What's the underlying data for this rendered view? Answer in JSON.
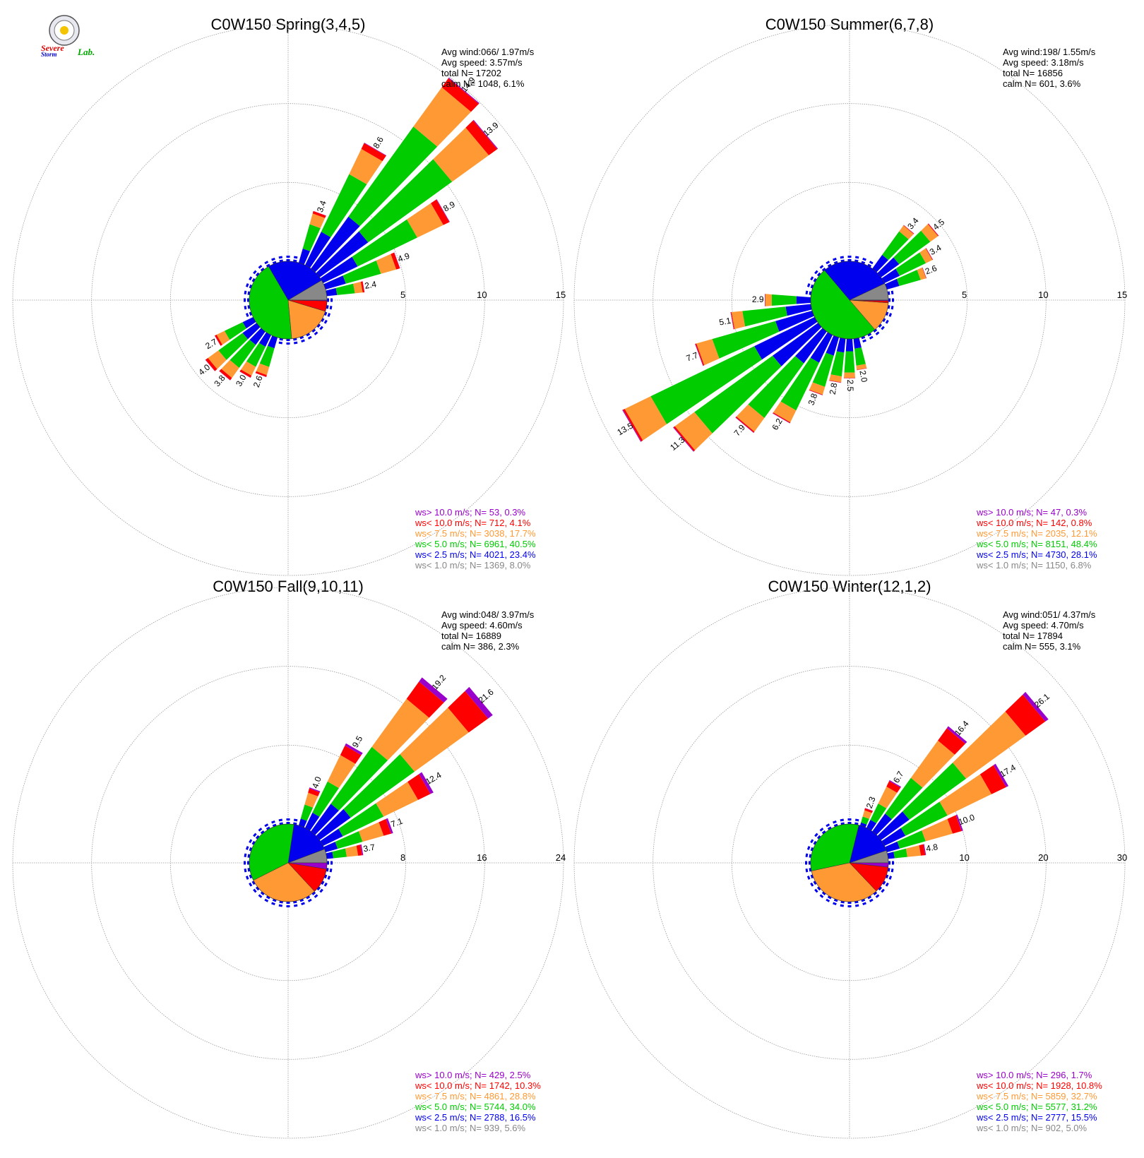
{
  "colors": {
    "calm": "#888888",
    "lt2_5": "#0000ee",
    "lt5": "#00cc00",
    "lt7_5": "#ff9933",
    "lt10": "#ff0000",
    "gt10": "#9900cc"
  },
  "logo": {
    "line1": "Severe",
    "line2": "Storm",
    "line3": "Lab."
  },
  "chart_data": [
    {
      "type": "windrose",
      "title": "C0W150 Spring(3,4,5)",
      "ring_max": 15,
      "ring_ticks": [
        "5",
        "10",
        "15"
      ],
      "stats": [
        "Avg wind:066/ 1.97m/s",
        "Avg speed: 3.57m/s",
        "total N=      17202",
        "calm N=   1048,   6.1%"
      ],
      "legend": [
        {
          "text": "ws> 10.0 m/s; N=    53,  0.3%",
          "color": "#9900cc"
        },
        {
          "text": "ws< 10.0 m/s; N=   712,  4.1%",
          "color": "#ff0000"
        },
        {
          "text": "ws<  7.5 m/s; N=  3038, 17.7%",
          "color": "#ff9933"
        },
        {
          "text": "ws<  5.0 m/s; N=  6961, 40.5%",
          "color": "#00cc00"
        },
        {
          "text": "ws<  2.5 m/s; N=  4021, 23.4%",
          "color": "#0000ee"
        },
        {
          "text": "ws<  1.0 m/s; N=  1369,  8.0%",
          "color": "#888888"
        }
      ],
      "pie": [
        8.0,
        23.4,
        40.5,
        17.7,
        4.1,
        0.3
      ],
      "bars": [
        {
          "dir": 30,
          "total": 8.6,
          "label": "8.6"
        },
        {
          "dir": 40,
          "total": 14.9,
          "label": "14.9"
        },
        {
          "dir": 50,
          "total": 13.9,
          "label": "13.9"
        },
        {
          "dir": 60,
          "total": 8.9,
          "label": "8.9"
        },
        {
          "dir": 70,
          "total": 4.9,
          "label": "4.9"
        },
        {
          "dir": 80,
          "total": 2.4,
          "label": "2.4"
        },
        {
          "dir": 20,
          "total": 3.4,
          "label": "3.4"
        },
        {
          "dir": 200,
          "total": 2.6,
          "label": "2.6"
        },
        {
          "dir": 210,
          "total": 3.0,
          "label": "3.0"
        },
        {
          "dir": 220,
          "total": 3.8,
          "label": "3.8"
        },
        {
          "dir": 230,
          "total": 4.0,
          "label": "4.0"
        },
        {
          "dir": 240,
          "total": 2.7,
          "label": "2.7"
        }
      ]
    },
    {
      "type": "windrose",
      "title": "C0W150 Summer(6,7,8)",
      "ring_max": 15,
      "ring_ticks": [
        "5",
        "10",
        "15"
      ],
      "stats": [
        "Avg wind:198/ 1.55m/s",
        "Avg speed: 3.18m/s",
        "total N=      16856",
        "calm N=    601,   3.6%"
      ],
      "legend": [
        {
          "text": "ws> 10.0 m/s; N=    47,  0.3%",
          "color": "#9900cc"
        },
        {
          "text": "ws< 10.0 m/s; N=   142,  0.8%",
          "color": "#ff0000"
        },
        {
          "text": "ws<  7.5 m/s; N=  2035, 12.1%",
          "color": "#ff9933"
        },
        {
          "text": "ws<  5.0 m/s; N=  8151, 48.4%",
          "color": "#00cc00"
        },
        {
          "text": "ws<  2.5 m/s; N=  4730, 28.1%",
          "color": "#0000ee"
        },
        {
          "text": "ws<  1.0 m/s; N=  1150,  6.8%",
          "color": "#888888"
        }
      ],
      "pie": [
        6.8,
        28.1,
        48.4,
        12.1,
        0.8,
        0.3
      ],
      "bars": [
        {
          "dir": 40,
          "total": 3.4,
          "label": "3.4"
        },
        {
          "dir": 50,
          "total": 4.5,
          "label": "4.5"
        },
        {
          "dir": 60,
          "total": 3.4,
          "label": "3.4"
        },
        {
          "dir": 70,
          "total": 2.6,
          "label": "2.6"
        },
        {
          "dir": 170,
          "total": 2.0,
          "label": "2.0"
        },
        {
          "dir": 180,
          "total": 2.5,
          "label": "2.5"
        },
        {
          "dir": 190,
          "total": 2.8,
          "label": "2.8"
        },
        {
          "dir": 200,
          "total": 3.8,
          "label": "3.8"
        },
        {
          "dir": 210,
          "total": 6.2,
          "label": "6.2"
        },
        {
          "dir": 220,
          "total": 7.9,
          "label": "7.9"
        },
        {
          "dir": 230,
          "total": 11.3,
          "label": "11.3"
        },
        {
          "dir": 240,
          "total": 13.5,
          "label": "13.5"
        },
        {
          "dir": 250,
          "total": 7.7,
          "label": "7.7"
        },
        {
          "dir": 260,
          "total": 5.1,
          "label": "5.1"
        },
        {
          "dir": 270,
          "total": 2.9,
          "label": "2.9"
        }
      ]
    },
    {
      "type": "windrose",
      "title": "C0W150 Fall(9,10,11)",
      "ring_max": 24,
      "ring_ticks": [
        "8",
        "16",
        "24"
      ],
      "stats": [
        "Avg wind:048/ 3.97m/s",
        "Avg speed: 4.60m/s",
        "total N=      16889",
        "calm N=    386,   2.3%"
      ],
      "legend": [
        {
          "text": "ws> 10.0 m/s; N=   429,  2.5%",
          "color": "#9900cc"
        },
        {
          "text": "ws< 10.0 m/s; N=  1742, 10.3%",
          "color": "#ff0000"
        },
        {
          "text": "ws<  7.5 m/s; N=  4861, 28.8%",
          "color": "#ff9933"
        },
        {
          "text": "ws<  5.0 m/s; N=  5744, 34.0%",
          "color": "#00cc00"
        },
        {
          "text": "ws<  2.5 m/s; N=  2788, 16.5%",
          "color": "#0000ee"
        },
        {
          "text": "ws<  1.0 m/s; N=   939,  5.6%",
          "color": "#888888"
        }
      ],
      "pie": [
        5.6,
        16.5,
        34.0,
        28.8,
        10.3,
        2.5
      ],
      "bars": [
        {
          "dir": 20,
          "total": 4.0,
          "label": "4.0"
        },
        {
          "dir": 30,
          "total": 9.5,
          "label": "9.5"
        },
        {
          "dir": 40,
          "total": 19.2,
          "label": "19.2"
        },
        {
          "dir": 50,
          "total": 21.6,
          "label": "21.6"
        },
        {
          "dir": 60,
          "total": 12.4,
          "label": "12.4"
        },
        {
          "dir": 70,
          "total": 7.1,
          "label": "7.1"
        },
        {
          "dir": 80,
          "total": 3.7,
          "label": "3.7"
        }
      ]
    },
    {
      "type": "windrose",
      "title": "C0W150 Winter(12,1,2)",
      "ring_max": 30,
      "ring_ticks": [
        "10",
        "20",
        "30"
      ],
      "stats": [
        "Avg wind:051/ 4.37m/s",
        "Avg speed: 4.70m/s",
        "total N=      17894",
        "calm N=    555,   3.1%"
      ],
      "legend": [
        {
          "text": "ws> 10.0 m/s; N=   296,  1.7%",
          "color": "#9900cc"
        },
        {
          "text": "ws< 10.0 m/s; N=  1928, 10.8%",
          "color": "#ff0000"
        },
        {
          "text": "ws<  7.5 m/s; N=  5859, 32.7%",
          "color": "#ff9933"
        },
        {
          "text": "ws<  5.0 m/s; N=  5577, 31.2%",
          "color": "#00cc00"
        },
        {
          "text": "ws<  2.5 m/s; N=  2777, 15.5%",
          "color": "#0000ee"
        },
        {
          "text": "ws<  1.0 m/s; N=   902,  5.0%",
          "color": "#888888"
        }
      ],
      "pie": [
        5.0,
        15.5,
        31.2,
        32.7,
        10.8,
        1.7
      ],
      "bars": [
        {
          "dir": 20,
          "total": 2.3,
          "label": "2.3"
        },
        {
          "dir": 30,
          "total": 6.7,
          "label": "6.7"
        },
        {
          "dir": 40,
          "total": 16.4,
          "label": "16.4"
        },
        {
          "dir": 50,
          "total": 26.1,
          "label": "26.1"
        },
        {
          "dir": 60,
          "total": 17.4,
          "label": "17.4"
        },
        {
          "dir": 70,
          "total": 10.0,
          "label": "10.0"
        },
        {
          "dir": 80,
          "total": 4.8,
          "label": "4.8"
        }
      ]
    }
  ]
}
